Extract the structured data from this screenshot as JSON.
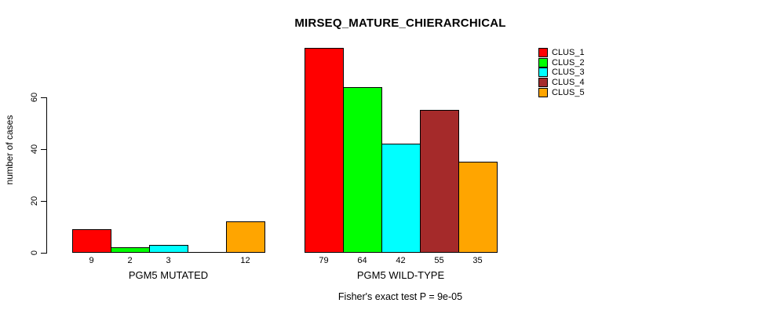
{
  "chart_data": {
    "type": "bar",
    "title": "MIRSEQ_MATURE_CHIERARCHICAL",
    "ylabel": "number of cases",
    "xlabel": "",
    "ylim": [
      0,
      60
    ],
    "yticks": [
      0,
      20,
      40,
      60
    ],
    "grid": false,
    "legend_position": "top-right",
    "footnote": "Fisher's exact test P = 9e-05",
    "clusters": [
      {
        "name": "CLUS_1",
        "color": "#ff0000"
      },
      {
        "name": "CLUS_2",
        "color": "#00ff00"
      },
      {
        "name": "CLUS_3",
        "color": "#00ffff"
      },
      {
        "name": "CLUS_4",
        "color": "#a52a2a"
      },
      {
        "name": "CLUS_5",
        "color": "#ffa500"
      }
    ],
    "groups": [
      {
        "label": "PGM5 MUTATED",
        "values": [
          9,
          2,
          3,
          0,
          12
        ],
        "bar_labels": [
          "9",
          "2",
          "3",
          "",
          "12"
        ]
      },
      {
        "label": "PGM5 WILD-TYPE",
        "values": [
          79,
          64,
          42,
          55,
          35
        ],
        "bar_labels": [
          "79",
          "64",
          "42",
          "55",
          "35"
        ]
      }
    ]
  }
}
